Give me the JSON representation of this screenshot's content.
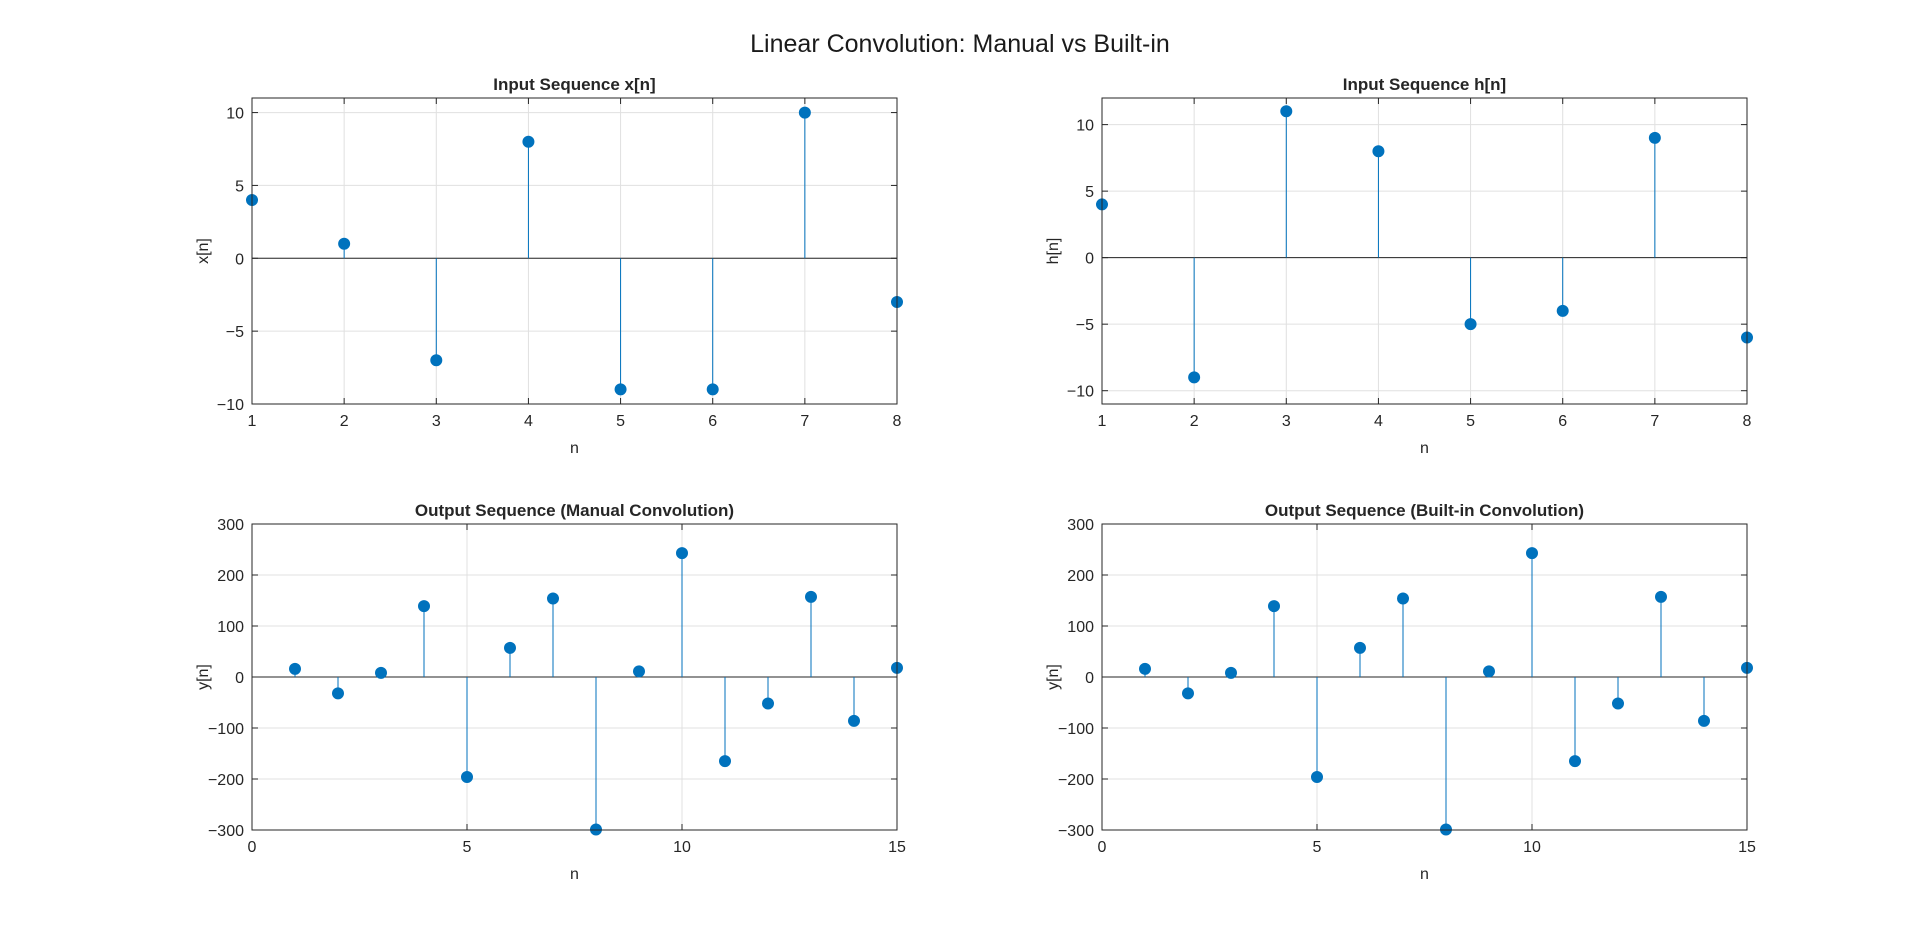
{
  "figure": {
    "suptitle": "Linear Convolution: Manual vs Built-in"
  },
  "colors": {
    "stem": "#0072BD",
    "axes": "#262626",
    "grid": "#e0e0e0",
    "baseline": "#262626"
  },
  "chart_data": [
    {
      "type": "stem",
      "title": "Input Sequence x[n]",
      "xlabel": "n",
      "ylabel": "x[n]",
      "xlim": [
        1,
        8
      ],
      "ylim": [
        -10,
        11
      ],
      "xticks": [
        1,
        2,
        3,
        4,
        5,
        6,
        7,
        8
      ],
      "yticks": [
        -10,
        -5,
        0,
        5,
        10
      ],
      "grid": true,
      "x": [
        1,
        2,
        3,
        4,
        5,
        6,
        7,
        8
      ],
      "y": [
        4,
        1,
        -7,
        8,
        -9,
        -9,
        10,
        -3
      ]
    },
    {
      "type": "stem",
      "title": "Input Sequence h[n]",
      "xlabel": "n",
      "ylabel": "h[n]",
      "xlim": [
        1,
        8
      ],
      "ylim": [
        -11,
        12
      ],
      "xticks": [
        1,
        2,
        3,
        4,
        5,
        6,
        7,
        8
      ],
      "yticks": [
        -10,
        -5,
        0,
        5,
        10
      ],
      "grid": true,
      "x": [
        1,
        2,
        3,
        4,
        5,
        6,
        7,
        8
      ],
      "y": [
        4,
        -9,
        11,
        8,
        -5,
        -4,
        9,
        -6
      ]
    },
    {
      "type": "stem",
      "title": "Output Sequence (Manual Convolution)",
      "xlabel": "n",
      "ylabel": "y[n]",
      "xlim": [
        0,
        15
      ],
      "ylim": [
        -300,
        300
      ],
      "xticks": [
        0,
        5,
        10,
        15
      ],
      "yticks": [
        -300,
        -200,
        -100,
        0,
        100,
        200,
        300
      ],
      "grid": true,
      "x": [
        1,
        2,
        3,
        4,
        5,
        6,
        7,
        8,
        9,
        10,
        11,
        12,
        13,
        14,
        15
      ],
      "y": [
        16,
        -32,
        8,
        139,
        -196,
        57,
        154,
        -299,
        11,
        243,
        -165,
        -52,
        157,
        -86,
        18
      ]
    },
    {
      "type": "stem",
      "title": "Output Sequence (Built-in Convolution)",
      "xlabel": "n",
      "ylabel": "y[n]",
      "xlim": [
        0,
        15
      ],
      "ylim": [
        -300,
        300
      ],
      "xticks": [
        0,
        5,
        10,
        15
      ],
      "yticks": [
        -300,
        -200,
        -100,
        0,
        100,
        200,
        300
      ],
      "grid": true,
      "x": [
        1,
        2,
        3,
        4,
        5,
        6,
        7,
        8,
        9,
        10,
        11,
        12,
        13,
        14,
        15
      ],
      "y": [
        16,
        -32,
        8,
        139,
        -196,
        57,
        154,
        -299,
        11,
        243,
        -165,
        -52,
        157,
        -86,
        18
      ]
    }
  ]
}
